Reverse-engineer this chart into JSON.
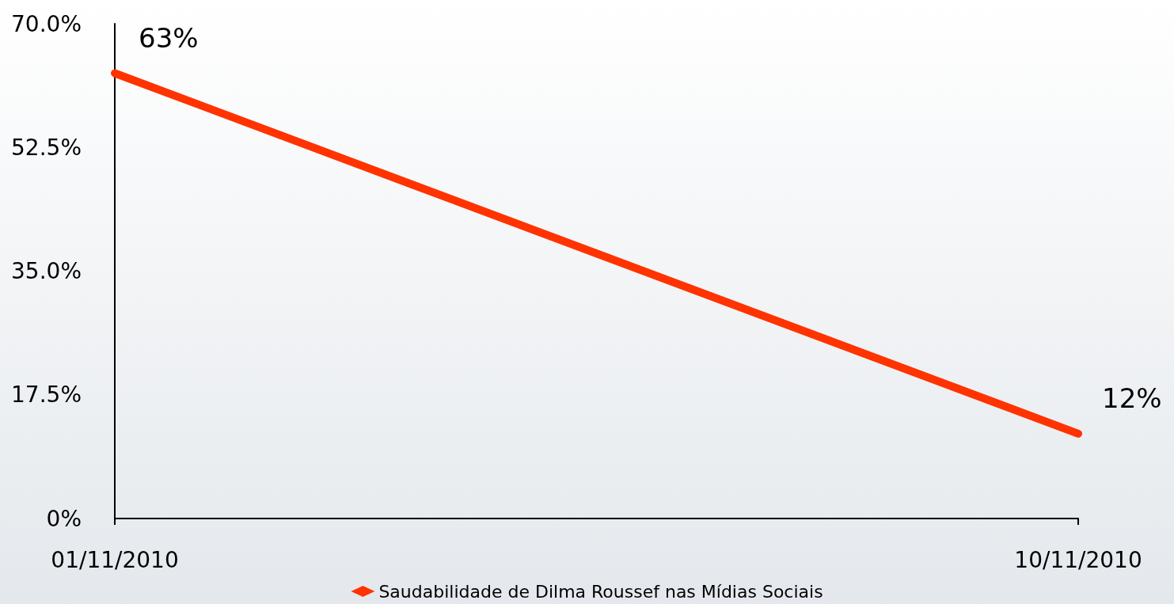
{
  "chart_data": {
    "type": "line",
    "categories": [
      "01/11/2010",
      "10/11/2010"
    ],
    "series": [
      {
        "name": "Saudabilidade de Dilma Roussef nas Mídias Sociais",
        "color": "#ff3300",
        "values": [
          63,
          12
        ],
        "value_labels": [
          "63%",
          "12%"
        ]
      }
    ],
    "ylim": [
      0,
      70
    ],
    "yticks": [
      {
        "value": 0,
        "label": "0%"
      },
      {
        "value": 17.5,
        "label": "17.5%"
      },
      {
        "value": 35,
        "label": "35.0%"
      },
      {
        "value": 52.5,
        "label": "52.5%"
      },
      {
        "value": 70,
        "label": "70.0%"
      }
    ],
    "legend": "bottom",
    "marker": "diamond",
    "line_style": "solid"
  }
}
